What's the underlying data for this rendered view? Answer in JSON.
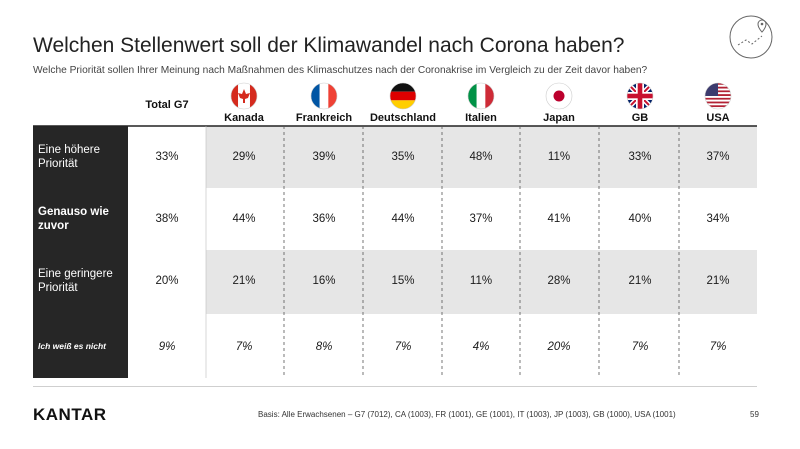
{
  "header": {
    "title": "Welchen Stellenwert soll der Klimawandel nach Corona haben?",
    "subtitle": "Welche Priorität sollen Ihrer Meinung nach Maßnahmen des Klimaschutzes nach der Coronakrise im Vergleich zu der Zeit davor haben?"
  },
  "footer": {
    "brand": "KANTAR",
    "basis": "Basis: Alle Erwachsenen – G7 (7012), CA (1003), FR (1001), GE (1001), IT (1003), JP (1003), GB (1000), USA (1001)",
    "page": "59"
  },
  "chart_data": {
    "type": "table",
    "columns": [
      "Total G7",
      "Kanada",
      "Frankreich",
      "Deutschland",
      "Italien",
      "Japan",
      "GB",
      "USA"
    ],
    "rows": [
      {
        "label": "Eine höhere Priorität",
        "values": [
          "33%",
          "29%",
          "39%",
          "35%",
          "48%",
          "11%",
          "33%",
          "37%"
        ]
      },
      {
        "label": "Genauso wie zuvor",
        "values": [
          "38%",
          "44%",
          "36%",
          "44%",
          "37%",
          "41%",
          "40%",
          "34%"
        ]
      },
      {
        "label": "Eine geringere Priorität",
        "values": [
          "20%",
          "21%",
          "16%",
          "15%",
          "11%",
          "28%",
          "21%",
          "21%"
        ]
      },
      {
        "label": "Ich weiß es nicht",
        "values": [
          "9%",
          "7%",
          "8%",
          "7%",
          "4%",
          "20%",
          "7%",
          "7%"
        ]
      }
    ],
    "flags": [
      "canada-flag-icon",
      "france-flag-icon",
      "germany-flag-icon",
      "italy-flag-icon",
      "japan-flag-icon",
      "uk-flag-icon",
      "usa-flag-icon"
    ],
    "colors": {
      "label_column": "#262626",
      "shaded_row": "#e6e6e6",
      "text": "#1a1a1a"
    }
  }
}
